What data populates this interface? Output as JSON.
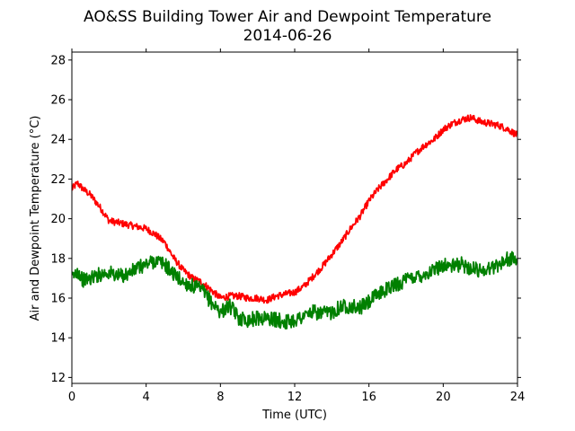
{
  "chart_data": {
    "type": "line",
    "title": "AO&SS Building Tower Air and Dewpoint Temperature",
    "subtitle": "2014-06-26",
    "xlabel": "Time (UTC)",
    "ylabel": "Air and Dewpoint Temperature (°C)",
    "xlim": [
      0,
      24
    ],
    "ylim": [
      11.7,
      28.4
    ],
    "x_ticks": [
      0,
      4,
      8,
      12,
      16,
      20,
      24
    ],
    "y_ticks": [
      12,
      14,
      16,
      18,
      20,
      22,
      24,
      26,
      28
    ],
    "grid": false,
    "series": [
      {
        "color": "#ff0000",
        "x": [
          0,
          0.3,
          0.6,
          1,
          1.5,
          2,
          2.5,
          3,
          3.5,
          4,
          4.5,
          5,
          5.5,
          6,
          6.5,
          7,
          7.5,
          8,
          8.5,
          9,
          9.5,
          10,
          10.5,
          11,
          11.5,
          12,
          12.5,
          13,
          13.5,
          14,
          14.5,
          15,
          15.5,
          16,
          16.5,
          17,
          17.5,
          18,
          18.5,
          19,
          19.5,
          20,
          20.5,
          21,
          21.5,
          22,
          22.5,
          23,
          23.5,
          24
        ],
        "values": [
          21.5,
          21.8,
          21.5,
          21.2,
          20.6,
          19.9,
          19.8,
          19.7,
          19.6,
          19.5,
          19.2,
          18.8,
          18.0,
          17.4,
          17.0,
          16.8,
          16.4,
          16.0,
          16.1,
          16.1,
          16.0,
          16.0,
          15.9,
          16.1,
          16.2,
          16.3,
          16.6,
          17.1,
          17.6,
          18.2,
          18.8,
          19.5,
          20.1,
          20.9,
          21.5,
          22.0,
          22.5,
          22.8,
          23.3,
          23.7,
          24.0,
          24.5,
          24.8,
          25.0,
          25.1,
          24.9,
          24.8,
          24.7,
          24.5,
          24.2
        ]
      },
      {
        "color": "#008000",
        "x": [
          0,
          0.3,
          0.6,
          1,
          1.5,
          2,
          2.5,
          3,
          3.5,
          4,
          4.5,
          5,
          5.5,
          6,
          6.5,
          7,
          7.5,
          8,
          8.5,
          9,
          9.5,
          10,
          10.5,
          11,
          11.5,
          12,
          12.5,
          13,
          13.5,
          14,
          14.5,
          15,
          15.5,
          16,
          16.5,
          17,
          17.5,
          18,
          18.5,
          19,
          19.5,
          20,
          20.5,
          21,
          21.5,
          22,
          22.5,
          23,
          23.5,
          24
        ],
        "values": [
          17.0,
          17.4,
          16.9,
          17.0,
          17.2,
          17.3,
          17.1,
          17.2,
          17.5,
          17.7,
          17.9,
          17.7,
          17.2,
          16.8,
          16.6,
          16.4,
          15.8,
          15.3,
          15.6,
          15.0,
          14.9,
          15.0,
          15.0,
          14.9,
          14.8,
          14.9,
          15.1,
          15.3,
          15.2,
          15.3,
          15.6,
          15.6,
          15.5,
          15.8,
          16.2,
          16.5,
          16.7,
          16.9,
          17.1,
          17.2,
          17.4,
          17.7,
          17.6,
          17.7,
          17.5,
          17.4,
          17.5,
          17.7,
          18.0,
          17.9
        ]
      }
    ]
  }
}
